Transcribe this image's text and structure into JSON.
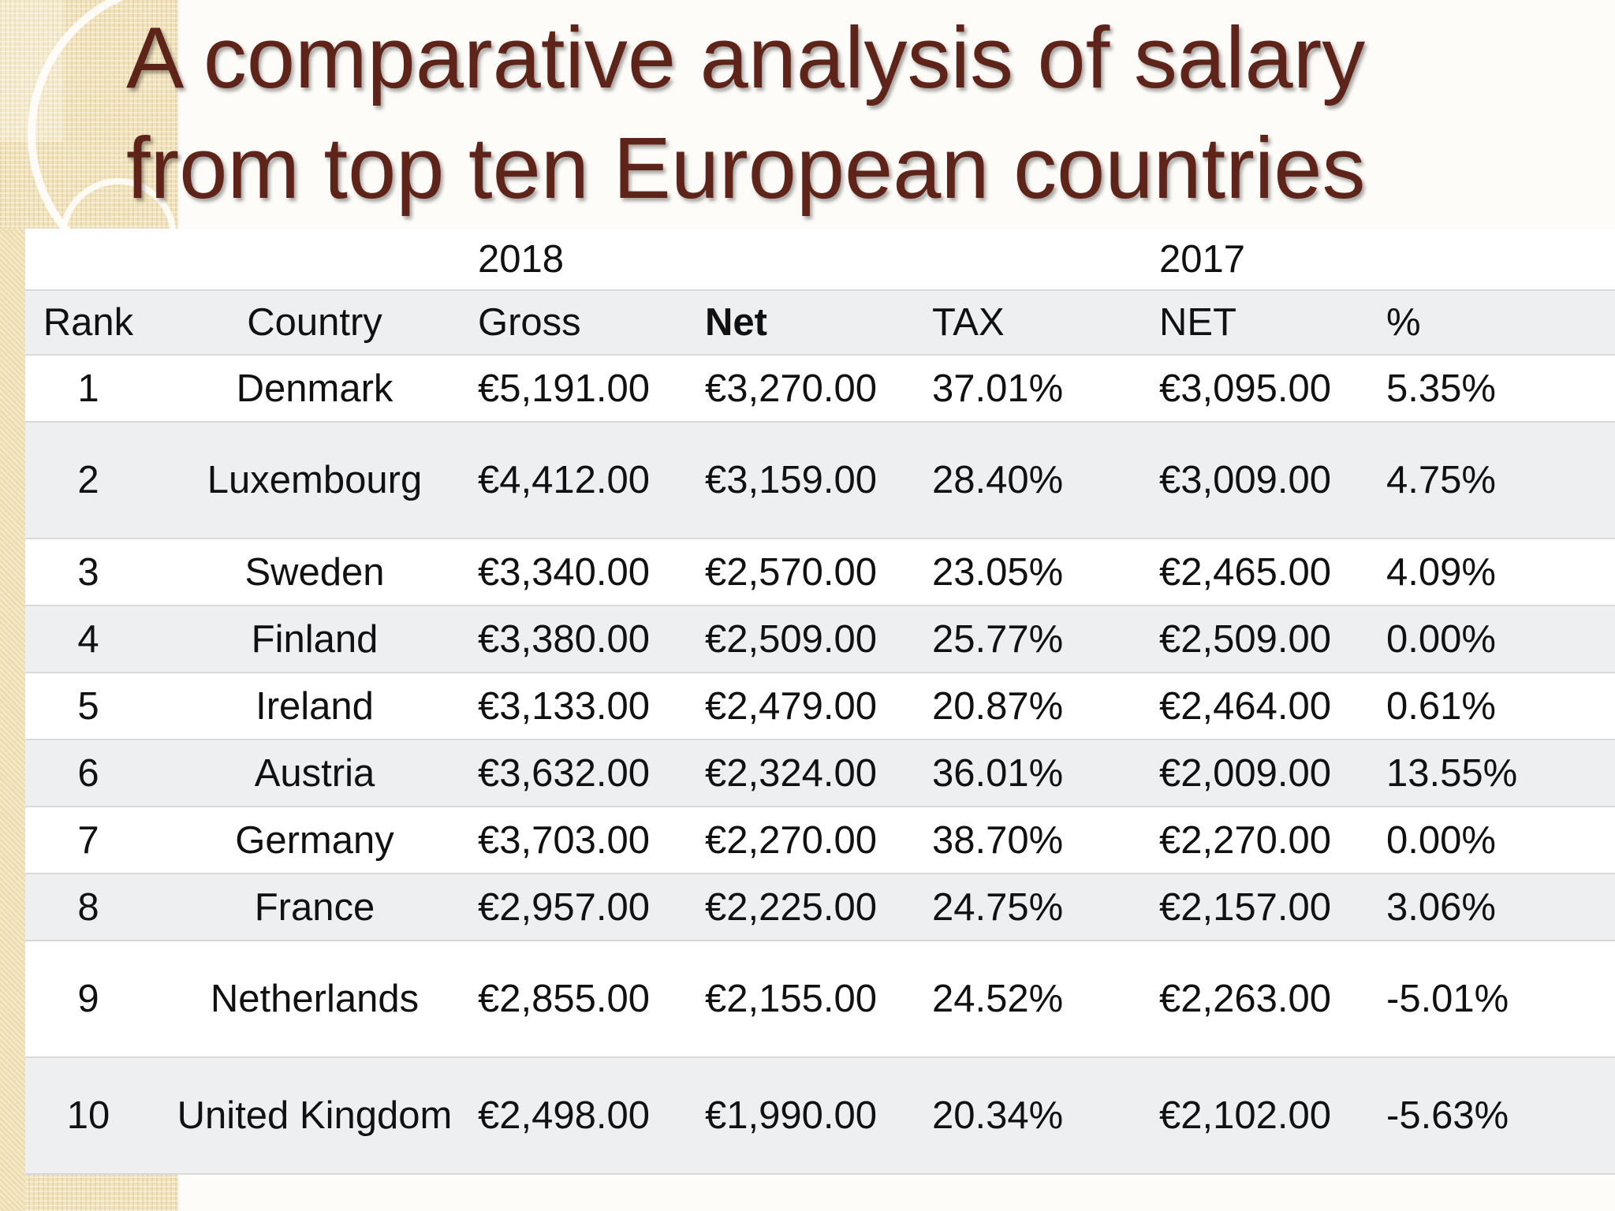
{
  "title": {
    "line1": "A comparative analysis of salary",
    "line2": "from top ten European countries"
  },
  "colors": {
    "title": "#5e241a",
    "strip": "#f1e3bd",
    "row_alt": "#eeeff1"
  },
  "table": {
    "year_headers": {
      "left": "2018",
      "right": "2017"
    },
    "columns": [
      "Rank",
      "Country",
      "Gross",
      "Net",
      "TAX",
      "NET",
      "%"
    ],
    "rows": [
      [
        "1",
        "Denmark",
        "€5,191.00",
        "€3,270.00",
        "37.01%",
        "€3,095.00",
        "5.35%"
      ],
      [
        "2",
        "Luxembourg",
        "€4,412.00",
        "€3,159.00",
        "28.40%",
        "€3,009.00",
        "4.75%"
      ],
      [
        "3",
        "Sweden",
        "€3,340.00",
        "€2,570.00",
        "23.05%",
        "€2,465.00",
        "4.09%"
      ],
      [
        "4",
        "Finland",
        "€3,380.00",
        "€2,509.00",
        "25.77%",
        "€2,509.00",
        "0.00%"
      ],
      [
        "5",
        "Ireland",
        "€3,133.00",
        "€2,479.00",
        "20.87%",
        "€2,464.00",
        "0.61%"
      ],
      [
        "6",
        "Austria",
        "€3,632.00",
        "€2,324.00",
        "36.01%",
        "€2,009.00",
        "13.55%"
      ],
      [
        "7",
        "Germany",
        "€3,703.00",
        "€2,270.00",
        "38.70%",
        "€2,270.00",
        "0.00%"
      ],
      [
        "8",
        "France",
        "€2,957.00",
        "€2,225.00",
        "24.75%",
        "€2,157.00",
        "3.06%"
      ],
      [
        "9",
        "Netherlands",
        "€2,855.00",
        "€2,155.00",
        "24.52%",
        "€2,263.00",
        "-5.01%"
      ],
      [
        "10",
        "United Kingdom",
        "€2,498.00",
        "€1,990.00",
        "20.34%",
        "€2,102.00",
        "-5.63%"
      ]
    ]
  }
}
